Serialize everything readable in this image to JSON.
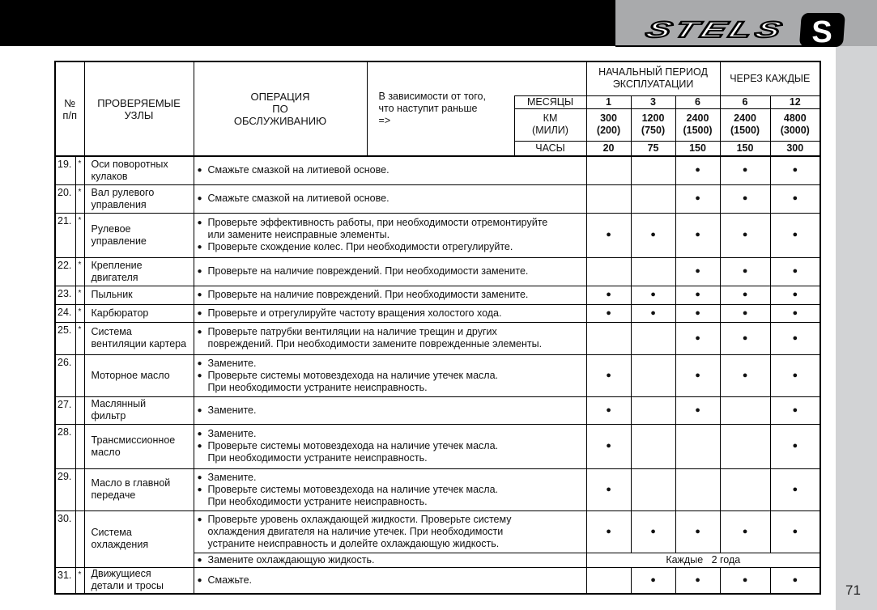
{
  "page_number": "71",
  "brand": "STELS",
  "header": {
    "num": "№\nп/п",
    "unit": "ПРОВЕРЯЕМЫЕ\nУЗЛЫ",
    "operation": "ОПЕРАЦИЯ\nПО\nОБСЛУЖИВАНИЮ",
    "condition": "В зависимости от того,\nчто наступит раньше\n=>",
    "initial_period": "НАЧАЛЬНЫЙ ПЕРИОД\nЭКСПЛУАТАЦИИ",
    "every": "ЧЕРЕЗ КАЖДЫЕ",
    "months_label": "МЕСЯЦЫ",
    "km_label": "КМ\n(МИЛИ)",
    "hours_label": "ЧАСЫ",
    "months": [
      "1",
      "3",
      "6",
      "6",
      "12"
    ],
    "km": [
      "300\n(200)",
      "1200\n(750)",
      "2400\n(1500)",
      "2400\n(1500)",
      "4800\n(3000)"
    ],
    "hours": [
      "20",
      "75",
      "150",
      "150",
      "300"
    ]
  },
  "mark_symbol": "●",
  "rows": [
    {
      "num": "19.",
      "star": "*",
      "name": "Оси поворотных\n  кулаков",
      "ops": [
        "Смажьте смазкой на литиевой основе."
      ],
      "marks": [
        false,
        false,
        true,
        true,
        true
      ]
    },
    {
      "num": "20.",
      "star": "*",
      "name": "Вал рулевого\nуправления",
      "ops": [
        "Смажьте смазкой на литиевой основе."
      ],
      "marks": [
        false,
        false,
        true,
        true,
        true
      ]
    },
    {
      "num": "21.",
      "star": "*",
      "name": "Рулевое\nуправление",
      "ops": [
        "Проверьте эффективность работы, при необходимости отремонтируйте\nили замените неисправные элементы.",
        "Проверьте схождение колес. При необходимости отрегулируйте."
      ],
      "marks": [
        true,
        true,
        true,
        true,
        true
      ]
    },
    {
      "num": "22.",
      "star": "*",
      "name": "Крепление\n  двигателя",
      "ops": [
        "Проверьте на наличие повреждений. При необходимости замените."
      ],
      "marks": [
        false,
        false,
        true,
        true,
        true
      ]
    },
    {
      "num": "23.",
      "star": "*",
      "name": "Пыльник",
      "ops": [
        "Проверьте на наличие повреждений. При необходимости замените."
      ],
      "marks": [
        true,
        true,
        true,
        true,
        true
      ]
    },
    {
      "num": "24.",
      "star": "*",
      "name": "Карбюратор",
      "ops": [
        "Проверьте и отрегулируйте частоту вращения холостого хода."
      ],
      "marks": [
        true,
        true,
        true,
        true,
        true
      ]
    },
    {
      "num": "25.",
      "star": "*",
      "name": "Система\nвентиляции картера",
      "ops": [
        "Проверьте патрубки вентиляции на наличие трещин и других\nповреждений. При необходимости замените поврежденные элементы."
      ],
      "marks": [
        false,
        false,
        true,
        true,
        true
      ]
    },
    {
      "num": "26.",
      "star": "",
      "name": "Моторное масло",
      "ops": [
        "Замените.",
        "Проверьте системы мотовездехода на наличие утечек масла.\nПри необходимости устраните неисправность."
      ],
      "marks": [
        true,
        false,
        true,
        true,
        true
      ]
    },
    {
      "num": "27.",
      "star": "",
      "name": "Маслянный\n  фильтр",
      "ops": [
        "Замените."
      ],
      "marks": [
        true,
        false,
        true,
        false,
        true
      ]
    },
    {
      "num": "28.",
      "star": "",
      "name": "Трансмиссионное\n  масло",
      "ops": [
        "Замените.",
        "Проверьте системы мотовездехода на наличие утечек масла.\nПри необходимости устраните неисправность."
      ],
      "marks": [
        true,
        false,
        false,
        false,
        true
      ]
    },
    {
      "num": "29.",
      "star": "",
      "name": "Масло в главной\n  передаче",
      "ops": [
        "Замените.",
        "Проверьте системы мотовездехода на наличие утечек масла.\nПри необходимости устраните неисправность."
      ],
      "marks": [
        true,
        false,
        false,
        false,
        true
      ]
    },
    {
      "num": "30.",
      "star": "",
      "name": "Система\n охлаждения",
      "ops": [
        "Проверьте уровень охлаждающей жидкости. Проверьте систему\nохлаждения двигателя на наличие утечек. При необходимости\nустраните неисправность и долейте охлаждающую жидкость."
      ],
      "marks": [
        true,
        true,
        true,
        true,
        true
      ],
      "sub": {
        "ops": [
          "Замените охлаждающую жидкость."
        ],
        "interval": "Каждые   2 года"
      }
    },
    {
      "num": "31.",
      "star": "*",
      "name": "Движущиеся\nдетали и тросы",
      "ops": [
        "Смажьте."
      ],
      "marks": [
        false,
        true,
        true,
        true,
        true
      ]
    }
  ]
}
